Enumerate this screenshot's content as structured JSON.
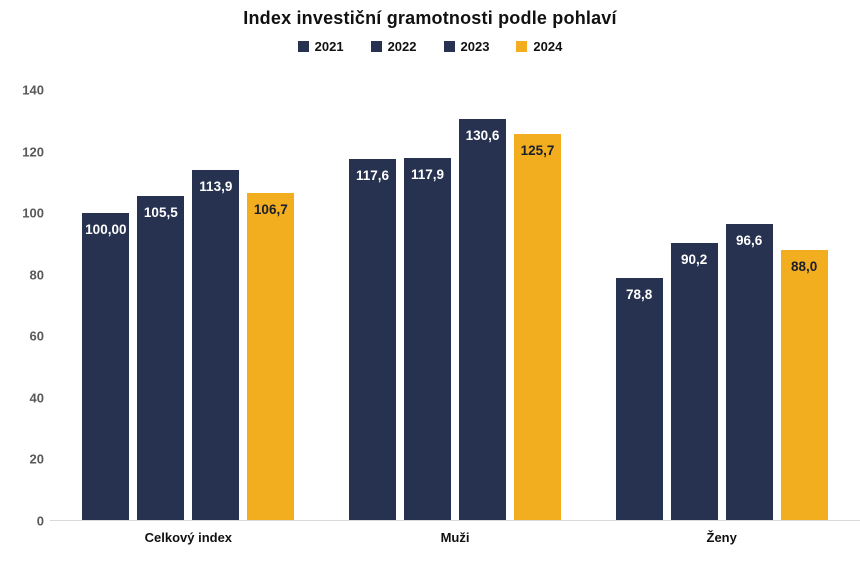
{
  "chart_data": {
    "type": "bar",
    "title": "Index investiční gramotnosti podle pohlaví",
    "xlabel": "",
    "ylabel": "",
    "categories": [
      "Celkový index",
      "Muži",
      "Ženy"
    ],
    "series": [
      {
        "name": "2021",
        "color": "#273150",
        "label_color": "#ffffff",
        "values": [
          100.0,
          117.6,
          78.8
        ],
        "labels": [
          "100,00",
          "117,6",
          "78,8"
        ]
      },
      {
        "name": "2022",
        "color": "#273150",
        "label_color": "#ffffff",
        "values": [
          105.5,
          117.9,
          90.2
        ],
        "labels": [
          "105,5",
          "117,9",
          "90,2"
        ]
      },
      {
        "name": "2023",
        "color": "#273150",
        "label_color": "#ffffff",
        "values": [
          113.9,
          130.6,
          96.6
        ],
        "labels": [
          "113,9",
          "130,6",
          "96,6"
        ]
      },
      {
        "name": "2024",
        "color": "#F2AE1E",
        "label_color": "#1a1f2e",
        "values": [
          106.7,
          125.7,
          88.0
        ],
        "labels": [
          "106,7",
          "125,7",
          "88,0"
        ]
      }
    ],
    "ylim": [
      0,
      140
    ],
    "y_ticks": [
      0,
      20,
      40,
      60,
      80,
      100,
      120,
      140
    ],
    "grid": false,
    "legend_position": "top",
    "value_labels_position": "inside-top"
  },
  "colors": {
    "background": "#ffffff",
    "axis_line": "#d9d9d9",
    "tick_label": "#595959",
    "title": "#111111"
  }
}
